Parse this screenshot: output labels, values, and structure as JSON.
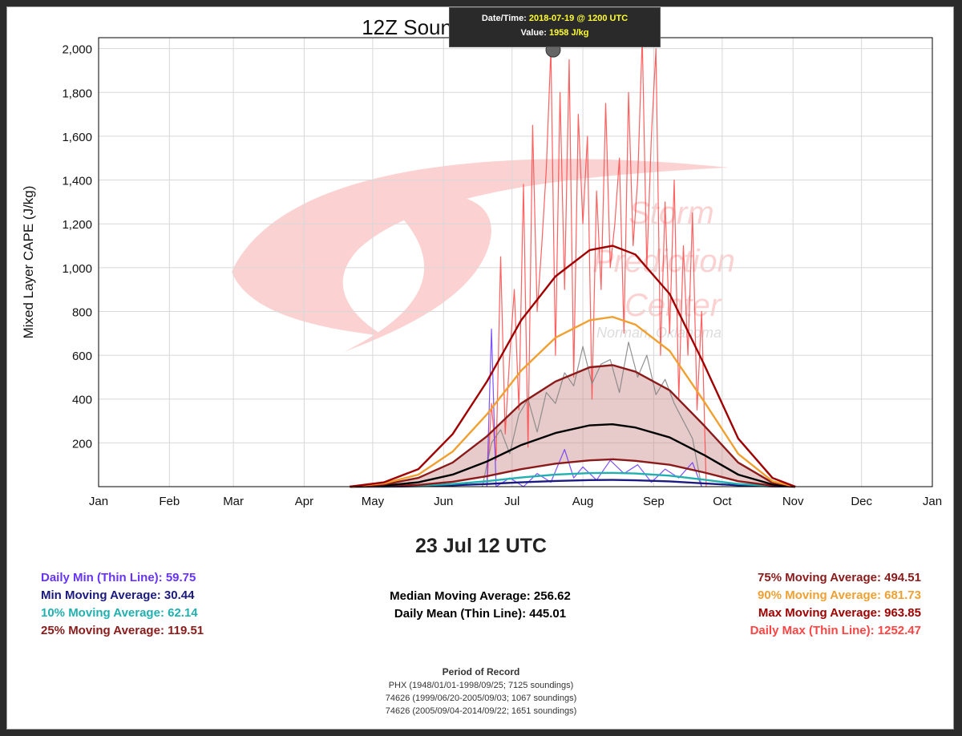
{
  "chart_data": {
    "type": "line",
    "title": "12Z Soundings PHX",
    "ylabel": "Mixed Layer CAPE (J/kg)",
    "ylim": [
      0,
      2050
    ],
    "yticks": [
      200,
      400,
      600,
      800,
      1000,
      1200,
      1400,
      1600,
      1800,
      2000
    ],
    "ytick_labels": [
      "200",
      "400",
      "600",
      "800",
      "1,000",
      "1,200",
      "1,400",
      "1,600",
      "1,800",
      "2,000"
    ],
    "xlim": [
      0,
      365
    ],
    "x_tick_days": [
      0,
      31,
      59,
      90,
      120,
      151,
      181,
      212,
      243,
      273,
      304,
      334,
      365
    ],
    "x_tick_labels": [
      "Jan",
      "Feb",
      "Mar",
      "Apr",
      "May",
      "Jun",
      "Jul",
      "Aug",
      "Sep",
      "Oct",
      "Nov",
      "Dec",
      "Jan"
    ],
    "grid": true,
    "x_units": "day of year",
    "series": [
      {
        "name": "Max Moving Average",
        "color": "#a00000",
        "x": [
          110,
          125,
          140,
          155,
          170,
          185,
          200,
          215,
          225,
          235,
          250,
          265,
          280,
          295,
          305
        ],
        "values": [
          0,
          20,
          80,
          240,
          480,
          760,
          960,
          1080,
          1100,
          1060,
          880,
          560,
          220,
          40,
          0
        ]
      },
      {
        "name": "90% Moving Average",
        "color": "#f0a030",
        "x": [
          110,
          125,
          140,
          155,
          170,
          185,
          200,
          215,
          225,
          235,
          250,
          265,
          280,
          295,
          305
        ],
        "values": [
          0,
          15,
          55,
          160,
          330,
          530,
          680,
          760,
          775,
          740,
          620,
          390,
          150,
          25,
          0
        ]
      },
      {
        "name": "75% Moving Average",
        "color": "#8b1a1a",
        "x": [
          110,
          125,
          140,
          155,
          170,
          185,
          200,
          215,
          225,
          235,
          250,
          265,
          280,
          295,
          305
        ],
        "values": [
          0,
          10,
          40,
          110,
          230,
          380,
          480,
          545,
          555,
          525,
          440,
          280,
          110,
          18,
          0
        ]
      },
      {
        "name": "Median Moving Average",
        "color": "#000000",
        "x": [
          110,
          125,
          140,
          155,
          170,
          185,
          200,
          215,
          225,
          235,
          250,
          265,
          280,
          295,
          305
        ],
        "values": [
          0,
          5,
          20,
          55,
          115,
          190,
          245,
          280,
          285,
          270,
          225,
          145,
          55,
          10,
          0
        ]
      },
      {
        "name": "25% Moving Average",
        "color": "#8b1a1a",
        "x": [
          110,
          125,
          140,
          155,
          170,
          185,
          200,
          215,
          225,
          235,
          250,
          265,
          280,
          295,
          305
        ],
        "values": [
          0,
          2,
          8,
          22,
          48,
          80,
          105,
          120,
          125,
          118,
          100,
          65,
          25,
          5,
          0
        ]
      },
      {
        "name": "10% Moving Average",
        "color": "#20b0b0",
        "x": [
          110,
          125,
          140,
          155,
          170,
          185,
          200,
          215,
          225,
          235,
          250,
          265,
          280,
          295,
          305
        ],
        "values": [
          0,
          1,
          4,
          12,
          25,
          42,
          55,
          62,
          63,
          60,
          50,
          32,
          12,
          3,
          0
        ]
      },
      {
        "name": "Min Moving Average",
        "color": "#1a1a80",
        "x": [
          110,
          125,
          140,
          155,
          170,
          185,
          200,
          215,
          225,
          235,
          250,
          265,
          280,
          295,
          305
        ],
        "values": [
          0,
          0,
          2,
          6,
          12,
          20,
          26,
          30,
          31,
          29,
          24,
          15,
          6,
          1,
          0
        ]
      },
      {
        "name": "Daily Max (Thin Line)",
        "color": "#ff4444",
        "x": [
          170,
          172,
          174,
          176,
          178,
          180,
          182,
          184,
          186,
          188,
          190,
          192,
          194,
          196,
          198,
          200,
          202,
          204,
          206,
          208,
          210,
          212,
          214,
          216,
          218,
          220,
          222,
          224,
          226,
          228,
          230,
          232,
          234,
          236,
          238,
          240,
          242,
          244,
          246,
          248,
          250,
          252,
          254,
          256,
          258,
          260,
          262,
          264,
          266
        ],
        "values": [
          0,
          380,
          120,
          1050,
          240,
          600,
          900,
          350,
          1380,
          180,
          1650,
          800,
          1100,
          1450,
          2000,
          600,
          1800,
          900,
          1950,
          500,
          1700,
          1200,
          1600,
          400,
          1350,
          900,
          1750,
          1000,
          1200,
          1500,
          700,
          1800,
          1100,
          1400,
          2050,
          1000,
          1600,
          2000,
          600,
          1300,
          700,
          1400,
          400,
          1100,
          600,
          1250,
          350,
          800,
          0
        ]
      },
      {
        "name": "Daily Mean (Thin Line)",
        "color": "#808080",
        "x": [
          168,
          172,
          176,
          180,
          184,
          188,
          192,
          196,
          200,
          204,
          208,
          212,
          216,
          220,
          224,
          228,
          232,
          236,
          240,
          244,
          248,
          252,
          256,
          260,
          264
        ],
        "values": [
          0,
          200,
          260,
          150,
          330,
          400,
          250,
          430,
          380,
          520,
          460,
          640,
          470,
          560,
          580,
          430,
          660,
          500,
          600,
          420,
          490,
          380,
          300,
          220,
          0
        ]
      },
      {
        "name": "Daily Min (Thin Line)",
        "color": "#6633ff",
        "x": [
          170,
          172,
          174,
          180,
          186,
          192,
          198,
          204,
          208,
          212,
          218,
          224,
          230,
          236,
          242,
          248,
          254,
          260,
          264
        ],
        "values": [
          0,
          720,
          0,
          40,
          0,
          60,
          20,
          170,
          40,
          90,
          30,
          120,
          60,
          100,
          20,
          80,
          40,
          110,
          0
        ]
      }
    ],
    "tooltip": {
      "datetime_label": "Date/Time:",
      "datetime": "2018-07-19 @ 1200 UTC",
      "value_label": "Value:",
      "value": "1958 J/kg",
      "marker_x": 199,
      "marker_y": 1958
    }
  },
  "summary": {
    "current": "23 Jul 12 UTC",
    "daily_min": "Daily Min (Thin Line): 59.75",
    "min_ma": "Min Moving Average: 30.44",
    "p10_ma": "10% Moving Average: 62.14",
    "p25_ma": "25% Moving Average: 119.51",
    "median_ma": "Median Moving Average: 256.62",
    "daily_mean": "Daily Mean (Thin Line): 445.01",
    "p75_ma": "75% Moving Average: 494.51",
    "p90_ma": "90% Moving Average: 681.73",
    "max_ma": "Max Moving Average: 963.85",
    "daily_max": "Daily Max (Thin Line): 1252.47"
  },
  "colors": {
    "daily_min": "#6633ff",
    "min_ma": "#1a1a80",
    "p10_ma": "#20b0b0",
    "p25_ma": "#8b1a1a",
    "median": "#000000",
    "p75_ma": "#8b1a1a",
    "p90_ma": "#f0a030",
    "max_ma": "#a00000",
    "daily_max": "#ff4444",
    "band_fill": "#c98c8c"
  },
  "record": {
    "title": "Period of Record",
    "lines": [
      "PHX (1948/01/01-1998/09/25; 7125 soundings)",
      "74626 (1999/06/20-2005/09/03; 1067 soundings)",
      "74626 (2005/09/04-2014/09/22; 1651 soundings)"
    ]
  },
  "watermark": {
    "line1": "Storm",
    "line2": "Prediction",
    "line3": "Center",
    "line4": "Norman, Oklahoma"
  }
}
